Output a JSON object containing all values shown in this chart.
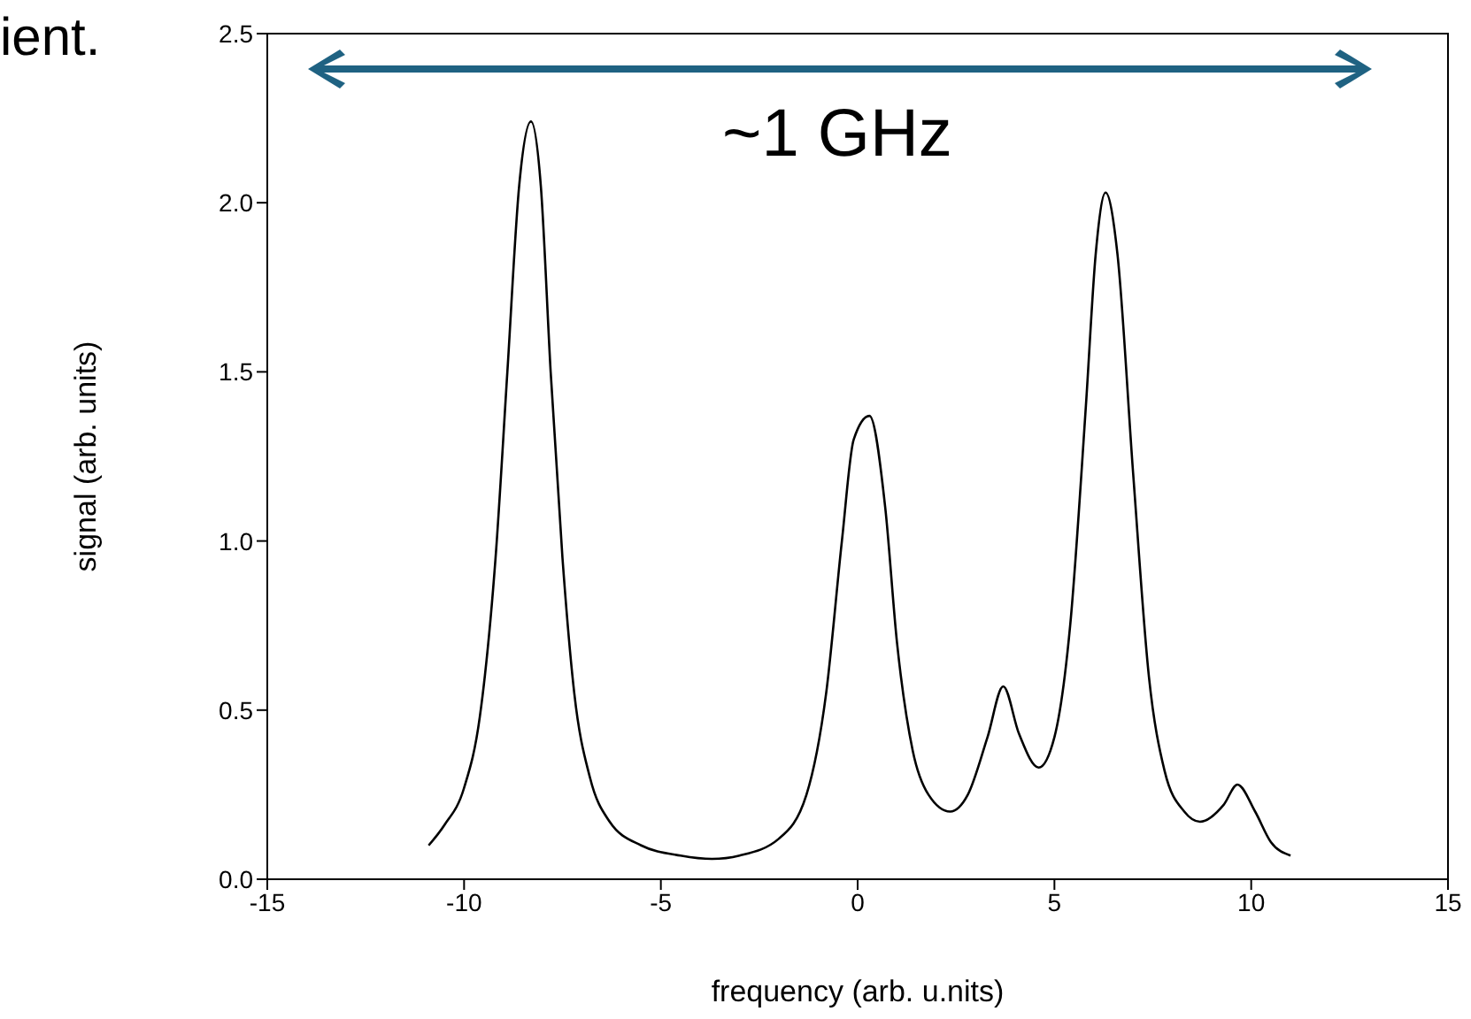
{
  "chart_data": {
    "type": "line",
    "xlabel": "frequency (arb. u.nits)",
    "ylabel": "signal (arb. units)",
    "annotations": [
      "~1 GHz",
      "ient."
    ],
    "xlim": [
      -15,
      15
    ],
    "xticks": [
      -15,
      -10,
      -5,
      0,
      5,
      10,
      15
    ],
    "ylim": [
      0,
      2.5
    ],
    "yticks": [
      {
        "value": 0,
        "label": "0.0"
      },
      {
        "value": 0.5,
        "label": "0.5"
      },
      {
        "value": 1,
        "label": "1.0"
      },
      {
        "value": 1.5,
        "label": "1.5"
      },
      {
        "value": 2,
        "label": "2.0"
      },
      {
        "value": 2.5,
        "label": "2.5"
      }
    ],
    "grid": false,
    "marker": "none",
    "line_style": "solid",
    "series": [
      {
        "color": "#000000",
        "x": [
          -10.9,
          -10.5,
          -10,
          -9.6,
          -9.2,
          -8.9,
          -8.6,
          -8.3,
          -8.05,
          -7.8,
          -7.5,
          -7.2,
          -6.8,
          -6.3,
          -5.5,
          -4.5,
          -3.7,
          -3,
          -2,
          -1.3,
          -0.8,
          -0.4,
          -0.1,
          0.3,
          0.7,
          1.0,
          1.4,
          1.8,
          2.35,
          2.8,
          3.3,
          3.7,
          4.1,
          4.6,
          5.0,
          5.4,
          5.8,
          6.05,
          6.3,
          6.6,
          7.0,
          7.4,
          7.8,
          8.3,
          8.7,
          9.3,
          9.65,
          10.1,
          10.5,
          11
        ],
        "values": [
          0.1,
          0.16,
          0.27,
          0.48,
          0.95,
          1.5,
          2.05,
          2.24,
          2.05,
          1.5,
          0.95,
          0.55,
          0.3,
          0.17,
          0.1,
          0.07,
          0.06,
          0.07,
          0.12,
          0.25,
          0.55,
          1.0,
          1.3,
          1.37,
          1.1,
          0.7,
          0.38,
          0.25,
          0.2,
          0.25,
          0.42,
          0.57,
          0.43,
          0.33,
          0.42,
          0.75,
          1.4,
          1.85,
          2.03,
          1.85,
          1.2,
          0.6,
          0.32,
          0.2,
          0.17,
          0.22,
          0.28,
          0.2,
          0.11,
          0.07
        ]
      }
    ]
  }
}
